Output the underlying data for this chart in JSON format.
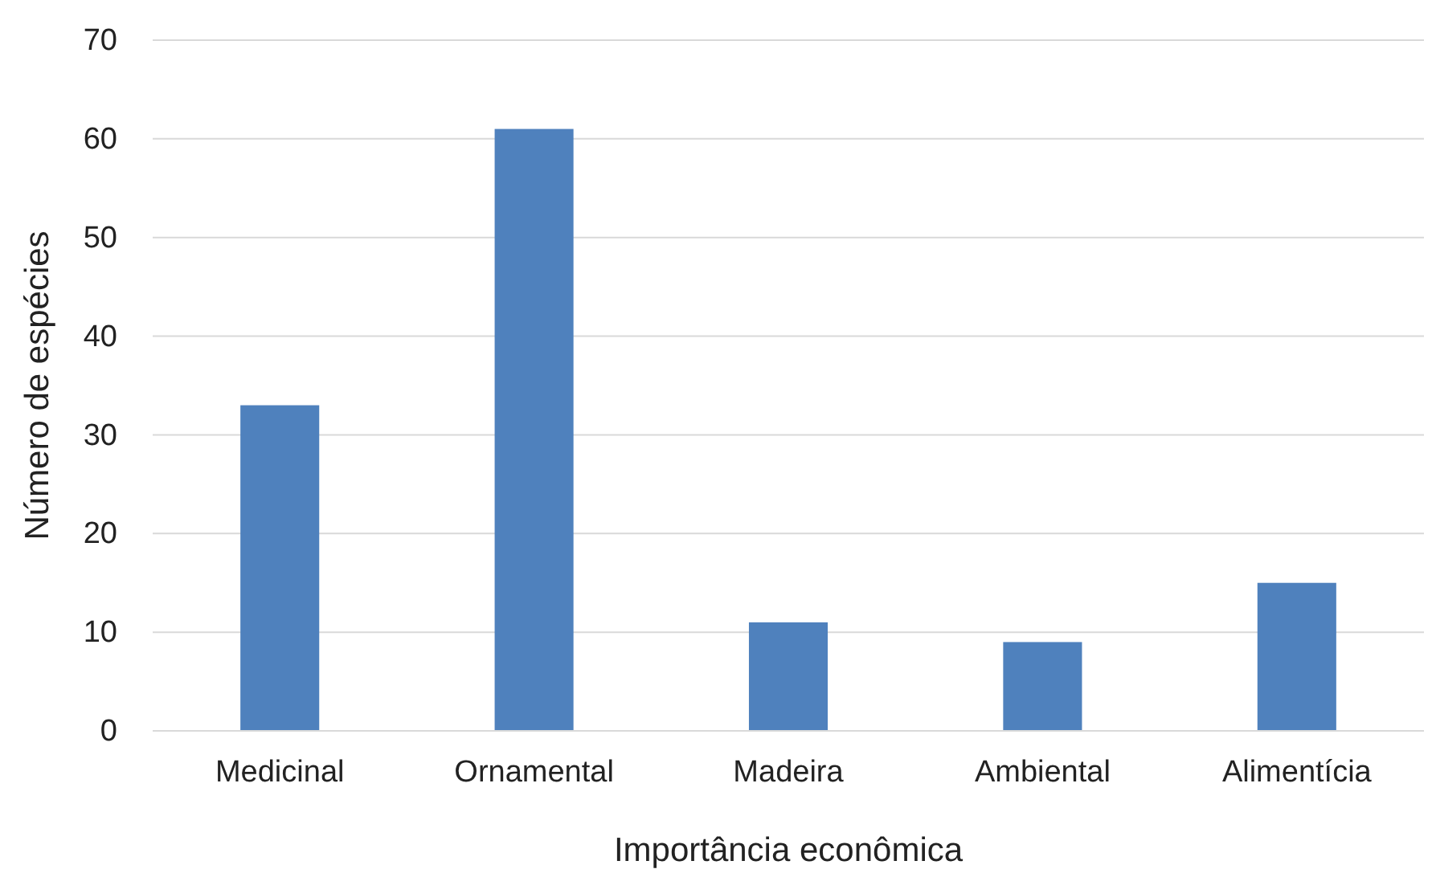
{
  "chart_data": {
    "type": "bar",
    "xlabel": "Importância econômica",
    "ylabel": "Número de espécies",
    "categories": [
      "Medicinal",
      "Ornamental",
      "Madeira",
      "Ambiental",
      "Alimentícia"
    ],
    "values": [
      33,
      61,
      11,
      9,
      15
    ],
    "color": "#4f81bd",
    "ylim": [
      0,
      70
    ],
    "yticks": [
      0,
      10,
      20,
      30,
      40,
      50,
      60,
      70
    ],
    "grid": "y"
  }
}
